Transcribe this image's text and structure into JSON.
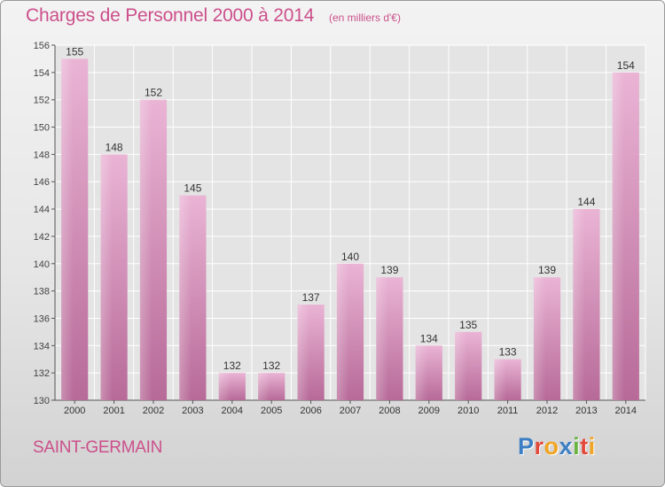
{
  "header": {
    "title": "Charges de Personnel 2000 à 2014",
    "subtitle": "(en milliers d'€)"
  },
  "footer": {
    "commune": "SAINT-GERMAIN",
    "brand": "Proxiti"
  },
  "colors": {
    "title": "#cc4f8b",
    "bar_light": "#eab4d5",
    "bar_dark": "#b76a98",
    "plot_background": "#e4e4e4",
    "brand_letters": [
      "#3d7fc4",
      "#e2493a",
      "#f0a421",
      "#3d7fc4",
      "#68b43e",
      "#e2493a",
      "#f0a421"
    ]
  },
  "chart_data": {
    "type": "bar",
    "categories": [
      "2000",
      "2001",
      "2002",
      "2003",
      "2004",
      "2005",
      "2006",
      "2007",
      "2008",
      "2009",
      "2010",
      "2011",
      "2012",
      "2013",
      "2014"
    ],
    "values": [
      155,
      148,
      152,
      145,
      132,
      132,
      137,
      140,
      139,
      134,
      135,
      133,
      139,
      144,
      154
    ],
    "title": "Charges de Personnel 2000 à 2014",
    "subtitle": "(en milliers d'€)",
    "xlabel": "",
    "ylabel": "",
    "ylim": [
      130,
      156
    ],
    "yticks": [
      130,
      132,
      134,
      136,
      138,
      140,
      142,
      144,
      146,
      148,
      150,
      152,
      154,
      156
    ],
    "grid": true,
    "legend": "none",
    "data_labels": true
  }
}
